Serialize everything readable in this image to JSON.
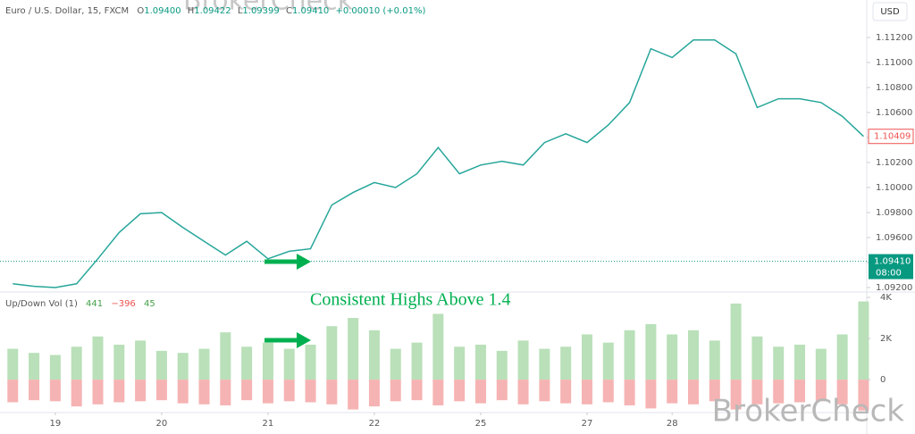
{
  "watermark": "BrokerCheck",
  "annotation": "Consistent Highs Above 1.4",
  "chart_data": [
    {
      "type": "line",
      "title": "Euro / U.S. Dollar, 15, FXCM",
      "ohlc": {
        "open_label": "O",
        "open": "1.09400",
        "high_label": "H",
        "high": "1.09422",
        "low_label": "L",
        "low": "1.09399",
        "close_label": "C",
        "close": "1.09410",
        "change": "+0.00010 (+0.01%)"
      },
      "currency": "USD",
      "color": "#26a69a",
      "x": [
        -0.4,
        -0.2,
        0,
        0.2,
        0.4,
        0.6,
        0.8,
        1,
        1.2,
        1.4,
        1.6,
        1.8,
        2,
        2.2,
        2.4,
        2.6,
        2.8,
        3,
        3.2,
        3.4,
        3.6,
        3.8,
        4,
        4.2,
        4.4,
        4.6,
        4.8,
        5,
        5.2,
        5.4,
        5.6,
        5.8,
        6,
        6.2,
        6.4,
        6.6,
        6.8,
        7,
        7.2,
        7.4,
        7.6
      ],
      "values": [
        1.0923,
        1.0921,
        1.092,
        1.0923,
        1.0943,
        1.0964,
        1.0979,
        1.098,
        1.0968,
        1.0957,
        1.0946,
        1.0957,
        1.0943,
        1.0949,
        1.0951,
        1.0986,
        1.0996,
        1.1004,
        1.1,
        1.1011,
        1.1032,
        1.1011,
        1.1018,
        1.1021,
        1.1018,
        1.1036,
        1.1043,
        1.1036,
        1.105,
        1.1068,
        1.1111,
        1.1104,
        1.1118,
        1.1118,
        1.1107,
        1.1064,
        1.1071,
        1.1071,
        1.1068,
        1.1057,
        1.10409
      ],
      "xlim": [
        -0.52,
        7.63
      ],
      "ylim": [
        1.09164,
        1.115
      ],
      "yticks": [
        {
          "value": 1.092,
          "label": "1.09200"
        },
        {
          "value": 1.094,
          "label": "1.09400"
        },
        {
          "value": 1.096,
          "label": "1.09600"
        },
        {
          "value": 1.098,
          "label": "1.09800"
        },
        {
          "value": 1.1,
          "label": "1.10000"
        },
        {
          "value": 1.102,
          "label": "1.10200"
        },
        {
          "value": 1.104,
          "label": "1.10400"
        },
        {
          "value": 1.106,
          "label": "1.10600"
        },
        {
          "value": 1.108,
          "label": "1.10800"
        },
        {
          "value": 1.11,
          "label": "1.11000"
        },
        {
          "value": 1.112,
          "label": "1.11200"
        }
      ],
      "last_label": {
        "value": 1.10409,
        "label": "1.10409",
        "color": "#ef5350"
      },
      "price_line": {
        "value": 1.0941,
        "label": "1.09410",
        "time": "08:00",
        "color": "#089981"
      }
    },
    {
      "type": "bar",
      "title": "Up/Down Vol (1)",
      "legend_values": [
        {
          "label": "441",
          "color": "#43a047"
        },
        {
          "label": "−396",
          "color": "#ef5350"
        },
        {
          "label": "45",
          "color": "#43a047"
        }
      ],
      "x": [
        -0.4,
        -0.2,
        0,
        0.2,
        0.4,
        0.6,
        0.8,
        1,
        1.2,
        1.4,
        1.6,
        1.8,
        2,
        2.2,
        2.4,
        2.6,
        2.8,
        3,
        3.2,
        3.4,
        3.6,
        3.8,
        4,
        4.2,
        4.4,
        4.6,
        4.8,
        5,
        5.2,
        5.4,
        5.6,
        5.8,
        6,
        6.2,
        6.4,
        6.6,
        6.8,
        7,
        7.2,
        7.4,
        7.6
      ],
      "series": [
        {
          "color": "#b9e0b9",
          "values": [
            1500,
            1300,
            1200,
            1600,
            2100,
            1700,
            1900,
            1400,
            1300,
            1500,
            2300,
            1600,
            1800,
            1500,
            1700,
            2600,
            3000,
            2400,
            1500,
            1800,
            3200,
            1600,
            1700,
            1400,
            1900,
            1500,
            1600,
            2200,
            1800,
            2400,
            2700,
            2200,
            2400,
            1900,
            3700,
            2100,
            1600,
            1700,
            1500,
            2200,
            3800
          ]
        },
        {
          "color": "#f6b3b3",
          "values": [
            -1100,
            -1000,
            -1050,
            -1300,
            -1200,
            -1100,
            -1050,
            -1000,
            -1150,
            -1200,
            -1250,
            -1000,
            -1150,
            -1050,
            -1100,
            -1200,
            -1450,
            -1300,
            -1050,
            -1000,
            -1250,
            -1050,
            -1150,
            -1000,
            -1200,
            -1050,
            -1150,
            -1200,
            -1100,
            -1250,
            -1400,
            -1150,
            -1200,
            -1050,
            -1450,
            -1200,
            -1150,
            -1100,
            -1050,
            -1200,
            -1500
          ]
        }
      ],
      "xlim": [
        -0.52,
        7.63
      ],
      "ylim": [
        -1600,
        4260
      ],
      "yticks": [
        0,
        {
          "value": 2000,
          "label": "2K"
        },
        {
          "value": 4000,
          "label": "4K"
        }
      ],
      "xticks": [
        {
          "value": 0,
          "label": "19"
        },
        {
          "value": 1,
          "label": "20"
        },
        {
          "value": 2,
          "label": "21"
        },
        {
          "value": 3,
          "label": "22"
        },
        {
          "value": 4,
          "label": "25"
        },
        {
          "value": 5,
          "label": "27"
        },
        {
          "value": 5.8,
          "label": "28"
        }
      ]
    }
  ]
}
